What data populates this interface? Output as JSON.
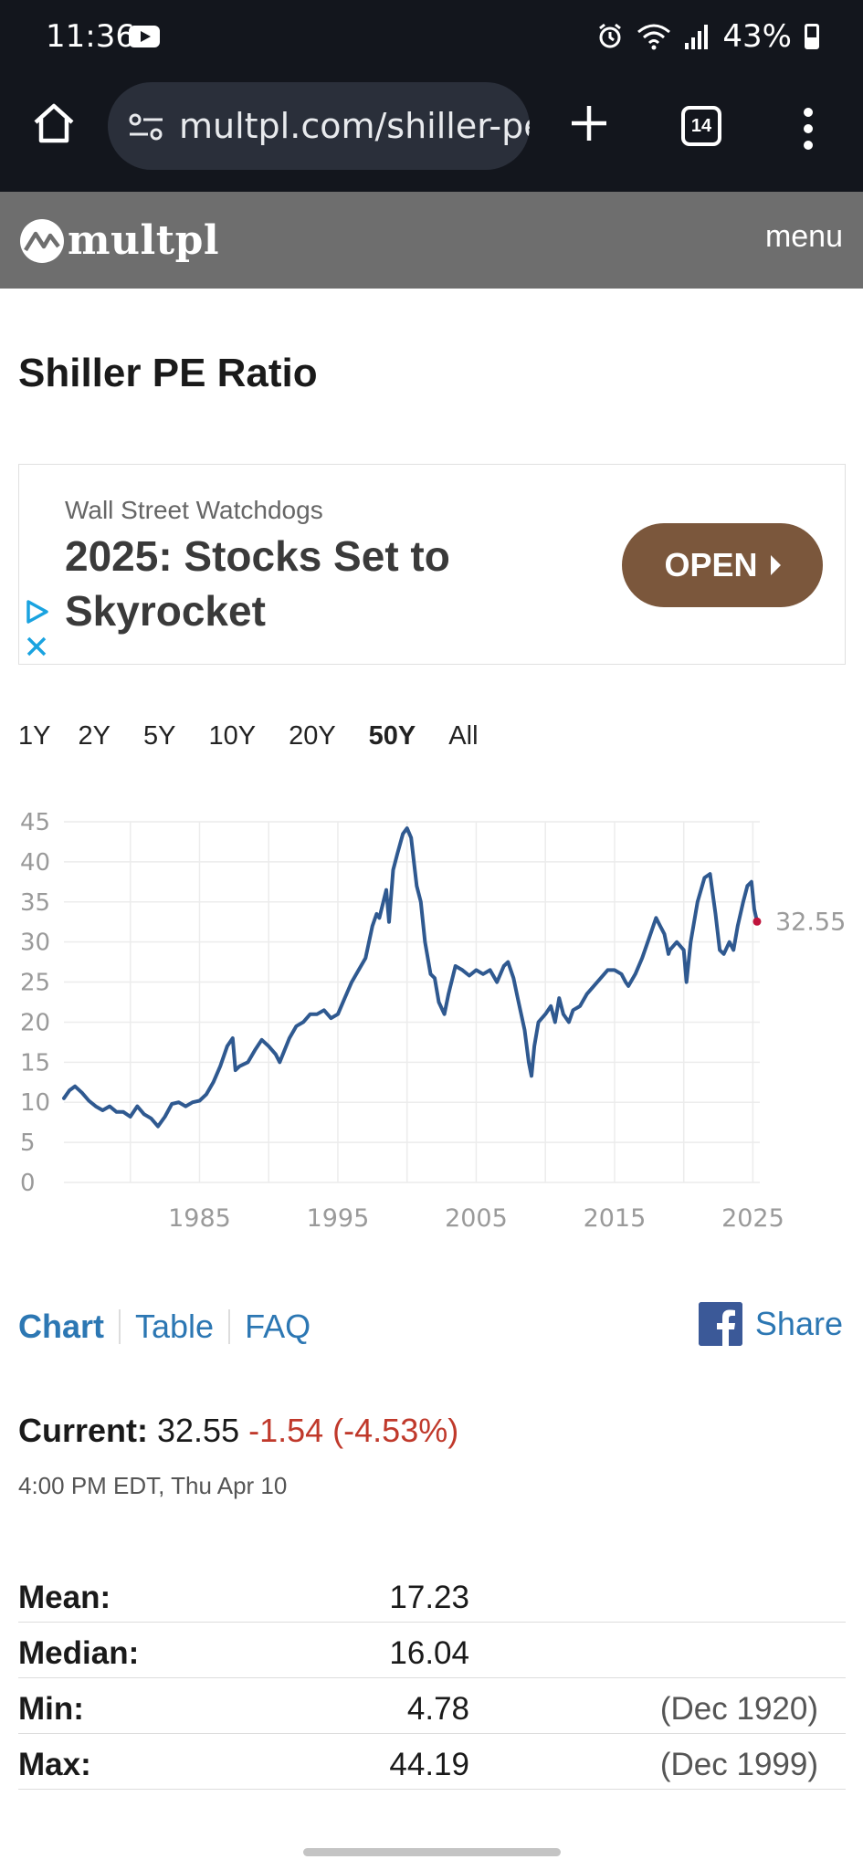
{
  "status_bar": {
    "time": "11:36",
    "battery": "43%"
  },
  "browser": {
    "url": "multpl.com/shiller-pe",
    "tab_count": "14"
  },
  "header": {
    "logo": "multpl",
    "menu": "menu"
  },
  "page": {
    "title": "Shiller PE Ratio"
  },
  "ad": {
    "source": "Wall Street Watchdogs",
    "headline": "2025: Stocks Set to Skyrocket",
    "button": "OPEN"
  },
  "range_tabs": [
    "1Y",
    "2Y",
    "5Y",
    "10Y",
    "20Y",
    "50Y",
    "All"
  ],
  "active_range": "50Y",
  "chart_data": {
    "type": "line",
    "yticks": [
      "45",
      "40",
      "35",
      "30",
      "25",
      "20",
      "15",
      "10",
      "5",
      "0"
    ],
    "xticks": [
      "1985",
      "1995",
      "2005",
      "2015",
      "2025"
    ],
    "ylim": [
      0,
      45
    ],
    "xlim": [
      1975.2,
      2025.5
    ],
    "grid": true,
    "end_label": "32.55",
    "line_color": "#2f5990",
    "marker_color": "#c0143c",
    "series": [
      {
        "x": [
          1975.2,
          1975.6,
          1976.0,
          1976.5,
          1977.0,
          1977.5,
          1978.0,
          1978.5,
          1979.0,
          1979.5,
          1980.0,
          1980.5,
          1981.0,
          1981.5,
          1982.0,
          1982.5,
          1983.0,
          1983.5,
          1984.0,
          1984.5,
          1985.0,
          1985.5,
          1986.0,
          1986.5,
          1987.0,
          1987.4,
          1987.6,
          1987.9,
          1988.5,
          1989.0,
          1989.5,
          1990.0,
          1990.5,
          1990.8,
          1991.5,
          1992.0,
          1992.5,
          1993.0,
          1993.5,
          1994.0,
          1994.5,
          1995.0,
          1995.5,
          1996.0,
          1996.5,
          1997.0,
          1997.5,
          1997.8,
          1998.0,
          1998.5,
          1998.7,
          1999.0,
          1999.3,
          1999.7,
          2000.0,
          2000.3,
          2000.7,
          2001.0,
          2001.3,
          2001.7,
          2002.0,
          2002.3,
          2002.7,
          2003.0,
          2003.5,
          2004.0,
          2004.5,
          2005.0,
          2005.5,
          2006.0,
          2006.5,
          2007.0,
          2007.3,
          2007.7,
          2008.0,
          2008.5,
          2008.8,
          2009.0,
          2009.2,
          2009.5,
          2010.0,
          2010.4,
          2010.7,
          2011.0,
          2011.3,
          2011.7,
          2012.0,
          2012.5,
          2013.0,
          2013.5,
          2014.0,
          2014.5,
          2015.0,
          2015.5,
          2015.8,
          2016.0,
          2016.5,
          2017.0,
          2017.5,
          2018.0,
          2018.3,
          2018.6,
          2018.9,
          2019.0,
          2019.5,
          2020.0,
          2020.2,
          2020.5,
          2021.0,
          2021.5,
          2021.9,
          2022.3,
          2022.6,
          2022.9,
          2023.3,
          2023.6,
          2023.9,
          2024.3,
          2024.6,
          2024.9,
          2025.1,
          2025.3
        ],
        "y": [
          10.5,
          11.5,
          12.0,
          11.2,
          10.2,
          9.5,
          9.0,
          9.5,
          8.8,
          8.8,
          8.2,
          9.5,
          8.5,
          8.0,
          7.0,
          8.2,
          9.8,
          10.0,
          9.5,
          10.0,
          10.2,
          11.0,
          12.5,
          14.5,
          17.0,
          18.0,
          14.0,
          14.5,
          15.0,
          16.5,
          17.8,
          17.0,
          16.0,
          15.0,
          18.0,
          19.5,
          20.0,
          21.0,
          21.0,
          21.5,
          20.5,
          21.0,
          23.0,
          25.0,
          26.5,
          28.0,
          32.0,
          33.5,
          33.0,
          36.5,
          32.5,
          39.0,
          41.0,
          43.5,
          44.19,
          43.0,
          37.0,
          35.0,
          30.0,
          26.0,
          25.5,
          22.5,
          21.0,
          23.5,
          27.0,
          26.5,
          25.8,
          26.5,
          26.0,
          26.5,
          25.0,
          27.0,
          27.5,
          25.5,
          23.0,
          19.0,
          15.0,
          13.3,
          17.0,
          20.0,
          21.0,
          22.0,
          20.0,
          23.0,
          21.0,
          20.0,
          21.5,
          22.0,
          23.5,
          24.5,
          25.5,
          26.5,
          26.5,
          26.0,
          25.0,
          24.5,
          26.0,
          28.0,
          30.5,
          33.0,
          32.0,
          31.0,
          28.5,
          29.0,
          30.0,
          29.0,
          25.0,
          30.0,
          35.0,
          38.0,
          38.5,
          33.5,
          29.0,
          28.5,
          30.0,
          29.0,
          32.0,
          35.0,
          37.0,
          37.5,
          34.1,
          32.55
        ]
      }
    ]
  },
  "view_links": [
    "Chart",
    "Table",
    "FAQ"
  ],
  "share": "Share",
  "current": {
    "label": "Current:",
    "value": "32.55",
    "change": "-1.54 (-4.53%)",
    "time": "4:00 PM EDT, Thu Apr 10"
  },
  "stats": [
    {
      "label": "Mean:",
      "value": "17.23",
      "date": ""
    },
    {
      "label": "Median:",
      "value": "16.04",
      "date": ""
    },
    {
      "label": "Min:",
      "value": "4.78",
      "date": "(Dec 1920)"
    },
    {
      "label": "Max:",
      "value": "44.19",
      "date": "(Dec 1999)"
    }
  ]
}
